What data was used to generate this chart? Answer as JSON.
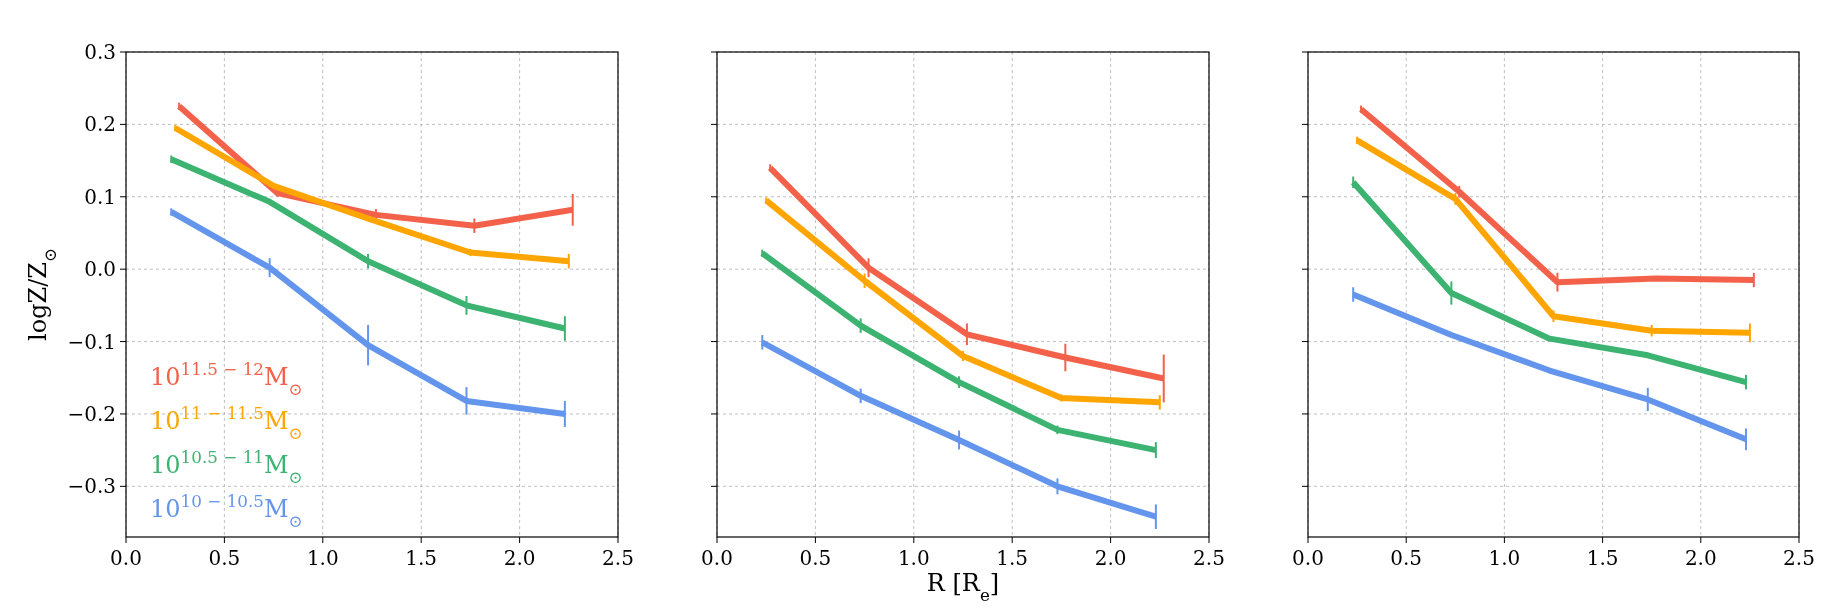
{
  "chart_data": [
    {
      "type": "line",
      "ylabel": "logZ/Z$_{⊙}$",
      "xlim": [
        0,
        2.5
      ],
      "xticks": [
        {
          "value": 0,
          "label": "0.0"
        },
        0.5,
        {
          "value": 1,
          "label": "1.0"
        },
        1.5,
        {
          "value": 2,
          "label": "2.0"
        },
        2.5
      ],
      "ylim": [
        -0.37,
        0.3
      ],
      "yticks": [
        {
          "value": -0.3,
          "label": "−0.3"
        },
        {
          "value": -0.2,
          "label": "−0.2"
        },
        {
          "value": -0.1,
          "label": "−0.1"
        },
        {
          "value": 0,
          "label": "0.0"
        },
        0.1,
        0.2,
        0.3
      ],
      "grid": true,
      "legend": "bottom left",
      "series": [
        {
          "name": "10$^{11.5 − 12}$M$_{⊙}$",
          "color": "#f4614a",
          "x": [
            0.27,
            0.77,
            1.27,
            1.77,
            2.27
          ],
          "values": [
            0.225,
            0.105,
            0.075,
            0.06,
            0.082
          ],
          "errors": [
            0.005,
            0.005,
            0.008,
            0.01,
            0.022
          ]
        },
        {
          "name": "10$^{11 − 11.5}$M$_{⊙}$",
          "color": "#ffa500",
          "x": [
            0.25,
            0.75,
            1.25,
            1.75,
            2.25
          ],
          "values": [
            0.195,
            0.115,
            0.068,
            0.023,
            0.011
          ],
          "errors": [
            0.004,
            0.004,
            0.004,
            0.005,
            0.01
          ]
        },
        {
          "name": "10$^{10.5 − 11}$M$_{⊙}$",
          "color": "#3cb371",
          "x": [
            0.23,
            0.73,
            1.23,
            1.73,
            2.23
          ],
          "values": [
            0.152,
            0.093,
            0.011,
            -0.05,
            -0.082
          ],
          "errors": [
            0.005,
            0.003,
            0.01,
            0.013,
            0.017
          ]
        },
        {
          "name": "10$^{10 − 10.5}$M$_{⊙}$",
          "color": "#6495ed",
          "x": [
            0.23,
            0.73,
            1.23,
            1.73,
            2.23
          ],
          "values": [
            0.079,
            0.002,
            -0.105,
            -0.182,
            -0.2
          ],
          "errors": [
            0.005,
            0.013,
            0.028,
            0.019,
            0.018
          ]
        }
      ]
    },
    {
      "type": "line",
      "xlabel": "R [R$_{e}$]",
      "xlim": [
        0,
        2.5
      ],
      "xticks": [
        {
          "value": 0,
          "label": "0.0"
        },
        0.5,
        {
          "value": 1,
          "label": "1.0"
        },
        1.5,
        {
          "value": 2,
          "label": "2.0"
        },
        2.5
      ],
      "ylim": [
        -0.37,
        0.3
      ],
      "yticks": [
        -0.3,
        -0.2,
        -0.1,
        0,
        0.1,
        0.2,
        0.3
      ],
      "grid": true,
      "tick_labels": "x",
      "series": [
        {
          "color": "#f4614a",
          "x": [
            0.27,
            0.77,
            1.27,
            1.77,
            2.27
          ],
          "values": [
            0.14,
            0.002,
            -0.09,
            -0.122,
            -0.151
          ],
          "errors": [
            0.005,
            0.013,
            0.015,
            0.019,
            0.033
          ]
        },
        {
          "color": "#ffa500",
          "x": [
            0.25,
            0.75,
            1.25,
            1.75,
            2.25
          ],
          "values": [
            0.095,
            -0.016,
            -0.12,
            -0.178,
            -0.184
          ],
          "errors": [
            0.004,
            0.01,
            0.007,
            0.005,
            0.01
          ]
        },
        {
          "color": "#3cb371",
          "x": [
            0.23,
            0.73,
            1.23,
            1.73,
            2.23
          ],
          "values": [
            0.022,
            -0.078,
            -0.156,
            -0.222,
            -0.25
          ],
          "errors": [
            0.005,
            0.01,
            0.008,
            0.006,
            0.011
          ]
        },
        {
          "color": "#6495ed",
          "x": [
            0.23,
            0.73,
            1.23,
            1.73,
            2.23
          ],
          "values": [
            -0.101,
            -0.175,
            -0.236,
            -0.3,
            -0.342
          ],
          "errors": [
            0.01,
            0.01,
            0.013,
            0.011,
            0.017
          ]
        }
      ]
    },
    {
      "type": "line",
      "xlim": [
        0,
        2.5
      ],
      "xticks": [
        {
          "value": 0,
          "label": "0.0"
        },
        0.5,
        {
          "value": 1,
          "label": "1.0"
        },
        1.5,
        {
          "value": 2,
          "label": "2.0"
        },
        2.5
      ],
      "ylim": [
        -0.37,
        0.3
      ],
      "yticks": [
        -0.3,
        -0.2,
        -0.1,
        0,
        0.1,
        0.2,
        0.3
      ],
      "grid": true,
      "tick_labels": "x",
      "series": [
        {
          "color": "#f4614a",
          "x": [
            0.27,
            0.77,
            1.27,
            1.77,
            2.27
          ],
          "values": [
            0.221,
            0.107,
            -0.018,
            -0.013,
            -0.015
          ],
          "errors": [
            0.005,
            0.008,
            0.013,
            0.003,
            0.01
          ]
        },
        {
          "color": "#ffa500",
          "x": [
            0.25,
            0.75,
            1.25,
            1.75,
            2.25
          ],
          "values": [
            0.178,
            0.097,
            -0.065,
            -0.085,
            -0.088
          ],
          "errors": [
            0.005,
            0.008,
            0.008,
            0.008,
            0.013
          ]
        },
        {
          "color": "#3cb371",
          "x": [
            0.23,
            0.73,
            1.23,
            1.73,
            2.23
          ],
          "values": [
            0.12,
            -0.033,
            -0.096,
            -0.119,
            -0.156
          ],
          "errors": [
            0.008,
            0.016,
            null,
            null,
            0.01
          ]
        },
        {
          "color": "#6495ed",
          "x": [
            0.23,
            0.73,
            1.23,
            1.73,
            2.23
          ],
          "values": [
            -0.035,
            -0.091,
            -0.14,
            -0.18,
            -0.235
          ],
          "errors": [
            0.01,
            null,
            0.003,
            0.016,
            0.015
          ]
        }
      ]
    }
  ]
}
